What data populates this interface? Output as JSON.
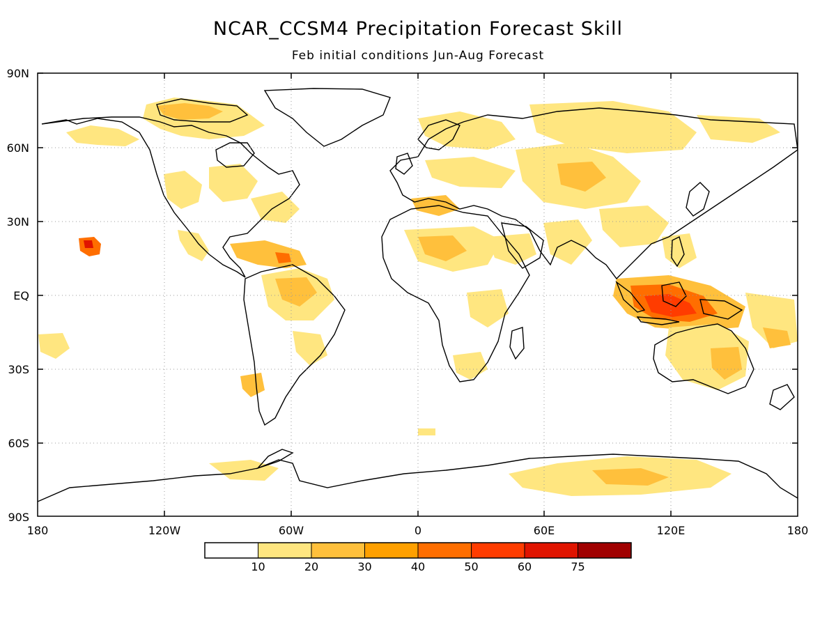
{
  "title": "NCAR_CCSM4 Precipitation Forecast Skill",
  "subtitle": "Feb initial conditions  Jun-Aug Forecast",
  "lat_labels": [
    "90N",
    "60N",
    "30N",
    "EQ",
    "30S",
    "60S",
    "90S"
  ],
  "lon_labels": [
    "180",
    "120W",
    "60W",
    "0",
    "60E",
    "120E",
    "180"
  ],
  "legend": {
    "labels": [
      "10",
      "20",
      "30",
      "40",
      "50",
      "60",
      "75"
    ],
    "colors": [
      "#ffffff",
      "#ffe680",
      "#ffc03c",
      "#ffa000",
      "#ff6e00",
      "#ff3c00",
      "#e01400",
      "#a00000"
    ]
  },
  "map_regions": {
    "land_outline_color": "#000000",
    "gridline_color": "#9a9a9a"
  }
}
